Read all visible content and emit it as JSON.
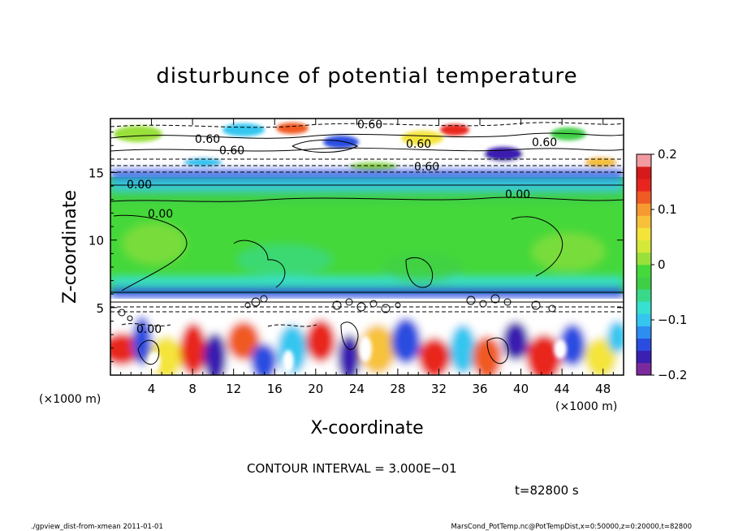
{
  "chart_data": {
    "type": "heatmap",
    "title": "disturbunce of potential temperature",
    "xlabel": "X-coordinate",
    "ylabel": "Z-coordinate",
    "x_unit_note": "(×1000 m)",
    "z_unit_note": "(×1000 m)",
    "xlim": [
      0,
      50
    ],
    "ylim": [
      0,
      19
    ],
    "x_ticks": [
      "4",
      "8",
      "12",
      "16",
      "20",
      "24",
      "28",
      "32",
      "36",
      "40",
      "44",
      "48"
    ],
    "y_ticks": [
      "5",
      "10",
      "15"
    ],
    "colorbar": {
      "min": -0.2,
      "max": 0.2,
      "tick_labels": [
        "0.2",
        "0.1",
        "0",
        "−0.1",
        "−0.2"
      ],
      "colors": [
        "#7b2a9e",
        "#3b1fb0",
        "#2a4de0",
        "#2c8ef0",
        "#35c6f0",
        "#37e0d0",
        "#39d98a",
        "#3fcf46",
        "#45d83a",
        "#9ae03a",
        "#d4e83a",
        "#f4e43a",
        "#f7c23a",
        "#f59a2f",
        "#f05a24",
        "#e8251f",
        "#d41a1a",
        "#f29aa0"
      ]
    },
    "contour_labels": [
      "0.60",
      "0.60",
      "0.60",
      "0.60",
      "0.60",
      "0.60",
      "0.00",
      "0.00",
      "0.00",
      "0.00"
    ],
    "contour_interval_text": "CONTOUR INTERVAL = 3.000E−01",
    "time_text": "t=82800 s"
  },
  "footer": {
    "left": "./gpview_dist-from-xmean  2011-01-01",
    "right": "MarsCond_PotTemp.nc@PotTempDist,x=0:50000,z=0:20000,t=82800"
  }
}
